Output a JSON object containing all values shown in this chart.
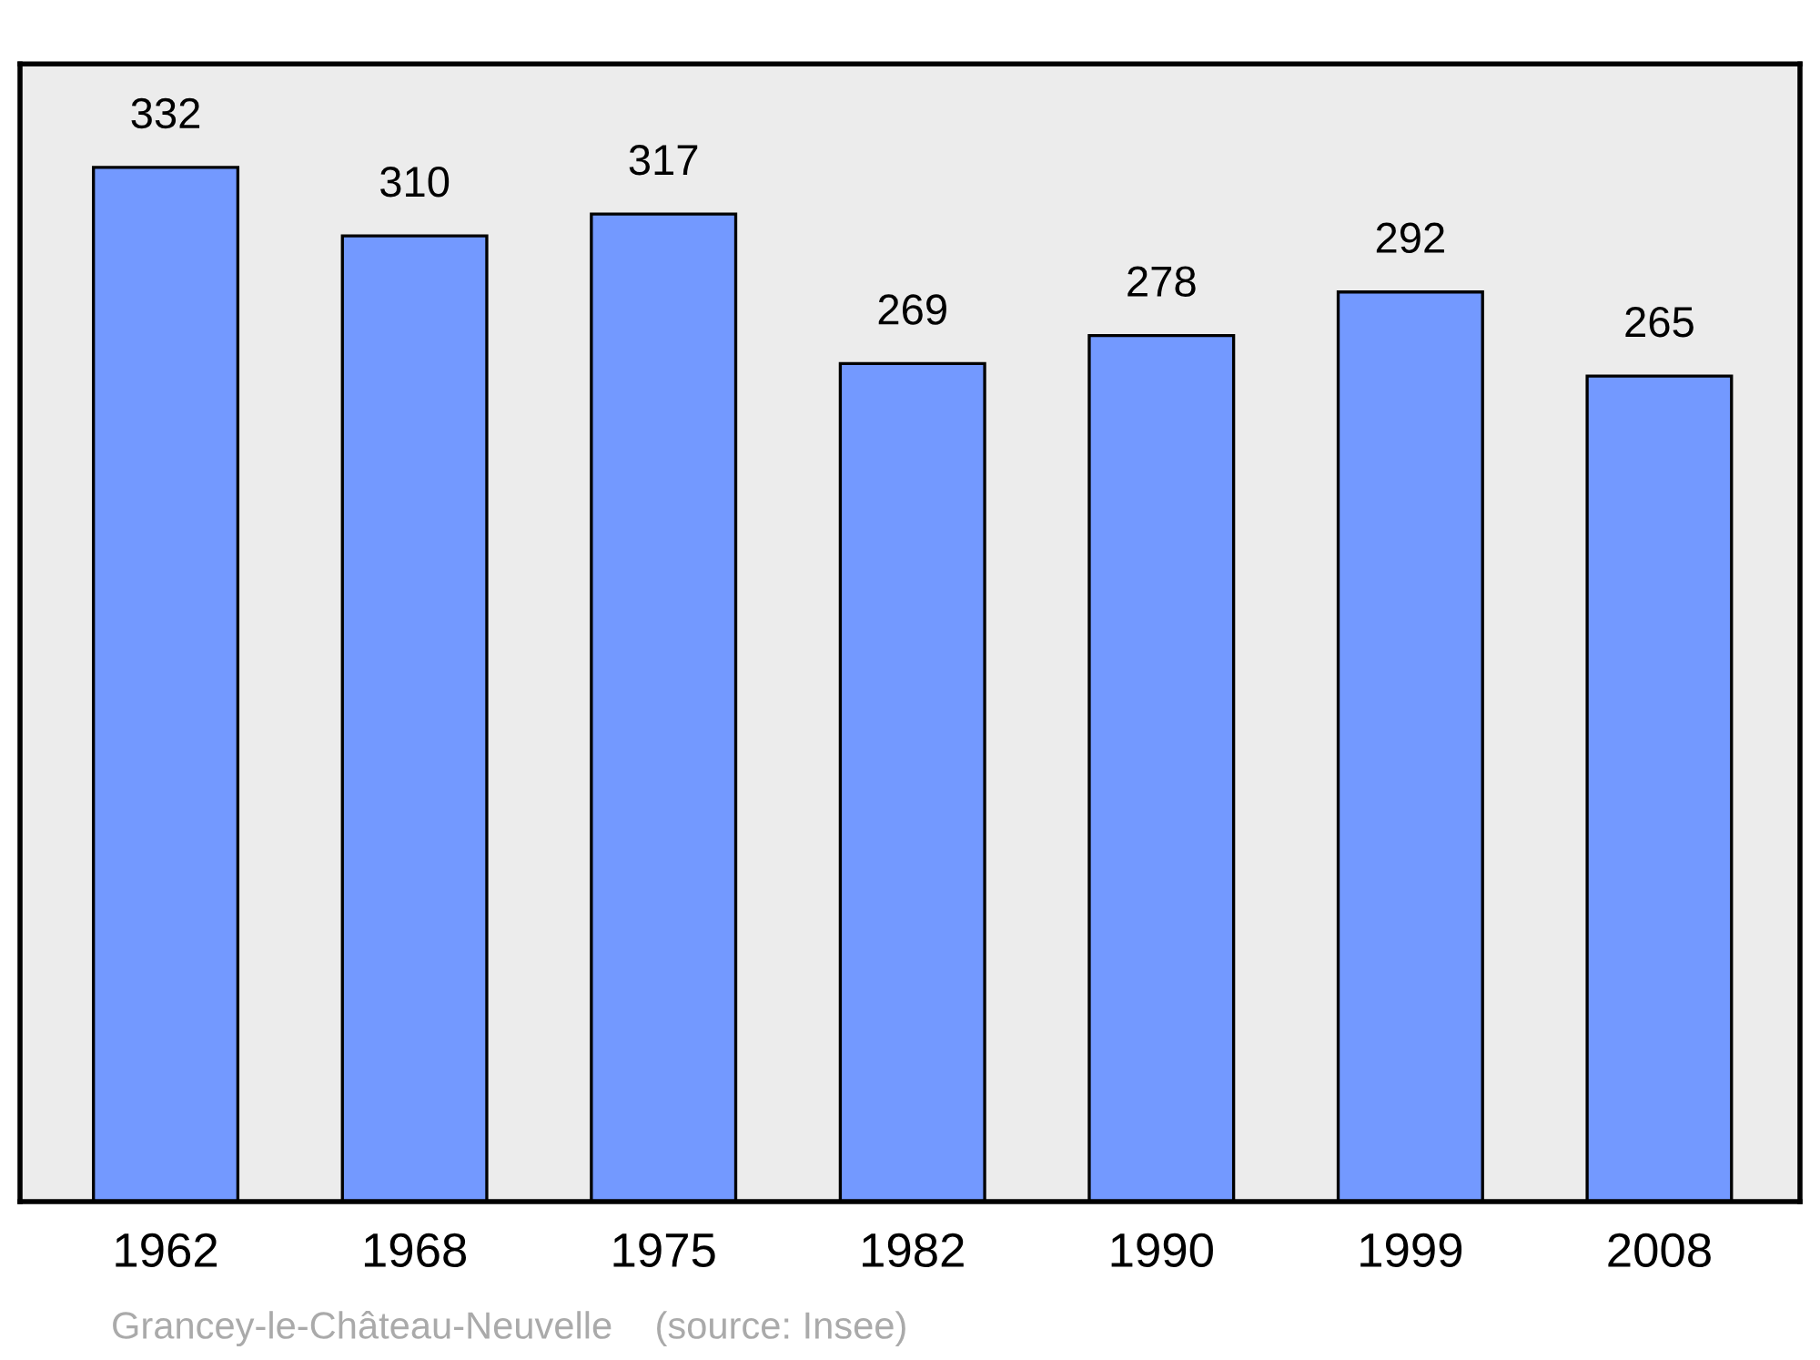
{
  "chart_data": {
    "type": "bar",
    "categories": [
      "1962",
      "1968",
      "1975",
      "1982",
      "1990",
      "1999",
      "2008"
    ],
    "values": [
      332,
      310,
      317,
      269,
      278,
      292,
      265
    ],
    "color": "#7399ff",
    "data_labels": true,
    "tick_labels": "x",
    "grid": false,
    "annotations": [
      "Grancey-le-Château-Neuvelle    (source: Insee)"
    ]
  }
}
